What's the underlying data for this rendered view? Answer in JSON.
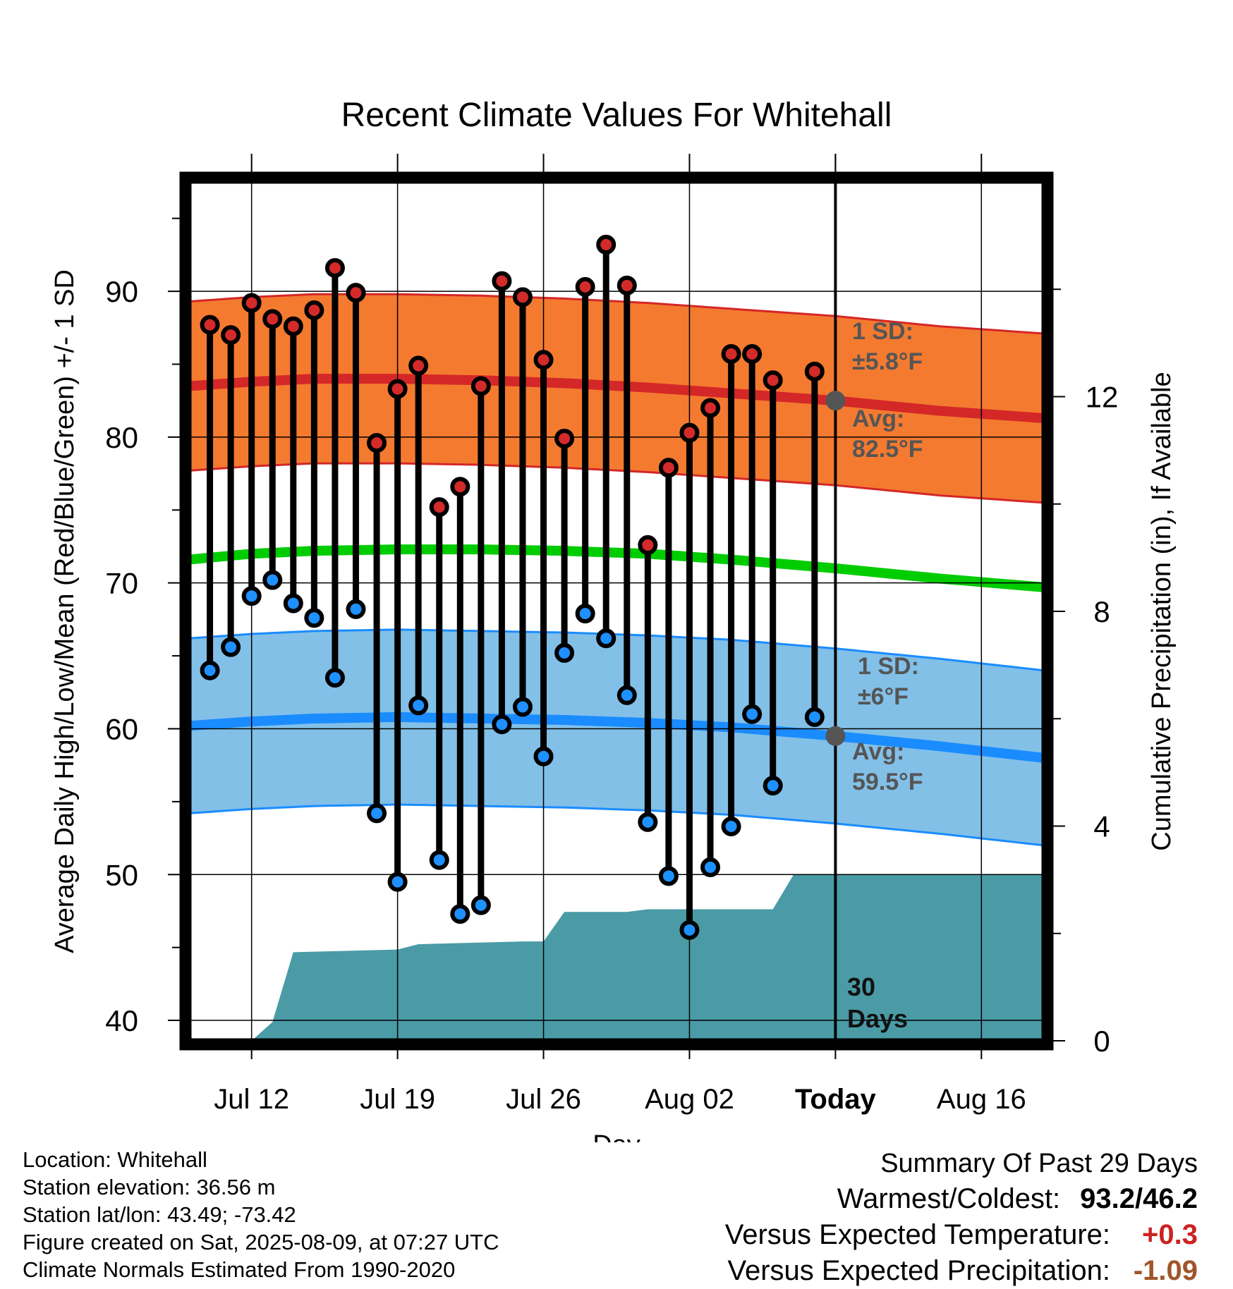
{
  "title": "Recent Climate Values For Whitehall",
  "y_label_left": "Average Daily High/Low/Mean (Red/Blue/Green) +/- 1 SD",
  "y_label_right": "Cumulative Precipitation (in), If Available",
  "x_label": "Day",
  "annotations": {
    "high_sd_line1": "1 SD:",
    "high_sd_line2": "±5.8°F",
    "high_avg_line1": "Avg:",
    "high_avg_line2": "82.5°F",
    "low_sd_line1": "1 SD:",
    "low_sd_line2": "±6°F",
    "low_avg_line1": "Avg:",
    "low_avg_line2": "59.5°F",
    "window_line1": "30",
    "window_line2": "Days"
  },
  "footer": {
    "location": "Location: Whitehall",
    "elevation": "Station elevation: 36.56 m",
    "latlon": "Station lat/lon: 43.49; -73.42",
    "created": "Figure created on Sat, 2025-08-09, at 07:27 UTC",
    "normals": "Climate Normals Estimated From 1990-2020"
  },
  "summary": {
    "heading": "Summary Of Past 29 Days",
    "warmest_label": "Warmest/Coldest:",
    "warmest_value": "93.2/46.2",
    "temp_label": "Versus Expected Temperature:",
    "temp_value": "+0.3",
    "precip_label": "Versus Expected Precipitation:",
    "precip_value": "-1.09"
  },
  "colors": {
    "high_band": "#f47a30",
    "high_line": "#d42727",
    "low_band": "#82c0e8",
    "low_line": "#1a8cff",
    "mean_line": "#00cc00",
    "precip": "#4a9ba6",
    "marker_high": "#d42a2a",
    "marker_low": "#1e90ff",
    "annotation_text": "#555555",
    "temp_value": "#cc2222",
    "precip_value": "#a0552a"
  },
  "chart_data": {
    "type": "line",
    "x_ticks": [
      "Jul 12",
      "Jul 19",
      "Jul 26",
      "Aug 02",
      "Today",
      "Aug 16"
    ],
    "x_tick_days": [
      12,
      19,
      26,
      33,
      40,
      47
    ],
    "x_range_days": [
      9,
      50
    ],
    "ylim_left": [
      38.6,
      97.5
    ],
    "y_ticks_left": [
      40,
      50,
      60,
      70,
      80,
      90
    ],
    "ylim_right": [
      0,
      16
    ],
    "y_ticks_right": [
      0,
      4,
      8,
      12
    ],
    "today_day": 40,
    "series": [
      {
        "name": "Daily High",
        "days": [
          10,
          11,
          12,
          13,
          14,
          15,
          16,
          17,
          18,
          19,
          20,
          21,
          22,
          23,
          24,
          25,
          26,
          27,
          28,
          29,
          30,
          31,
          32,
          33,
          34,
          35,
          36,
          37,
          39
        ],
        "values": [
          87.7,
          87.0,
          89.2,
          88.1,
          87.6,
          88.7,
          91.6,
          89.9,
          79.6,
          83.3,
          84.9,
          75.2,
          76.6,
          83.5,
          90.7,
          89.6,
          85.3,
          79.9,
          90.3,
          93.2,
          90.4,
          72.6,
          77.9,
          80.3,
          82.0,
          85.7,
          85.7,
          83.9,
          84.5
        ]
      },
      {
        "name": "Daily Low",
        "days": [
          10,
          11,
          12,
          13,
          14,
          15,
          16,
          17,
          18,
          19,
          20,
          21,
          22,
          23,
          24,
          25,
          26,
          27,
          28,
          29,
          30,
          31,
          32,
          33,
          34,
          35,
          36,
          37,
          39
        ],
        "values": [
          64.0,
          65.6,
          69.1,
          70.2,
          68.6,
          67.6,
          63.5,
          68.2,
          54.2,
          49.5,
          61.6,
          51.0,
          47.3,
          47.9,
          60.3,
          61.5,
          58.1,
          65.2,
          67.9,
          66.2,
          62.3,
          53.6,
          49.9,
          46.2,
          50.5,
          53.3,
          61.0,
          56.1,
          60.8
        ]
      },
      {
        "name": "Normal High",
        "days": [
          9,
          12,
          15,
          19,
          23,
          27,
          31,
          35,
          40,
          45,
          50
        ],
        "values": [
          83.5,
          83.8,
          84.0,
          84.0,
          83.9,
          83.7,
          83.4,
          83.0,
          82.5,
          81.8,
          81.3
        ]
      },
      {
        "name": "Normal High SD",
        "days": [
          9,
          50
        ],
        "values": [
          5.8,
          5.8
        ]
      },
      {
        "name": "Normal Mean",
        "days": [
          9,
          12,
          15,
          19,
          23,
          27,
          31,
          35,
          40,
          45,
          50
        ],
        "values": [
          71.6,
          72.0,
          72.2,
          72.3,
          72.3,
          72.2,
          72.0,
          71.6,
          71.0,
          70.3,
          69.7
        ]
      },
      {
        "name": "Normal Low",
        "days": [
          9,
          12,
          15,
          19,
          23,
          27,
          31,
          35,
          40,
          45,
          50
        ],
        "values": [
          60.2,
          60.5,
          60.7,
          60.8,
          60.7,
          60.6,
          60.4,
          60.1,
          59.5,
          58.8,
          58.0
        ]
      },
      {
        "name": "Normal Low SD",
        "days": [
          9,
          50
        ],
        "values": [
          6.0,
          6.0
        ]
      },
      {
        "name": "Cumulative Precipitation",
        "days": [
          9,
          12,
          13,
          14,
          19,
          20,
          25,
          26,
          27,
          30,
          31,
          37,
          38,
          50
        ],
        "values": [
          0,
          0,
          0.35,
          1.65,
          1.7,
          1.8,
          1.85,
          1.85,
          2.4,
          2.4,
          2.45,
          2.45,
          3.1,
          3.1
        ]
      }
    ]
  }
}
